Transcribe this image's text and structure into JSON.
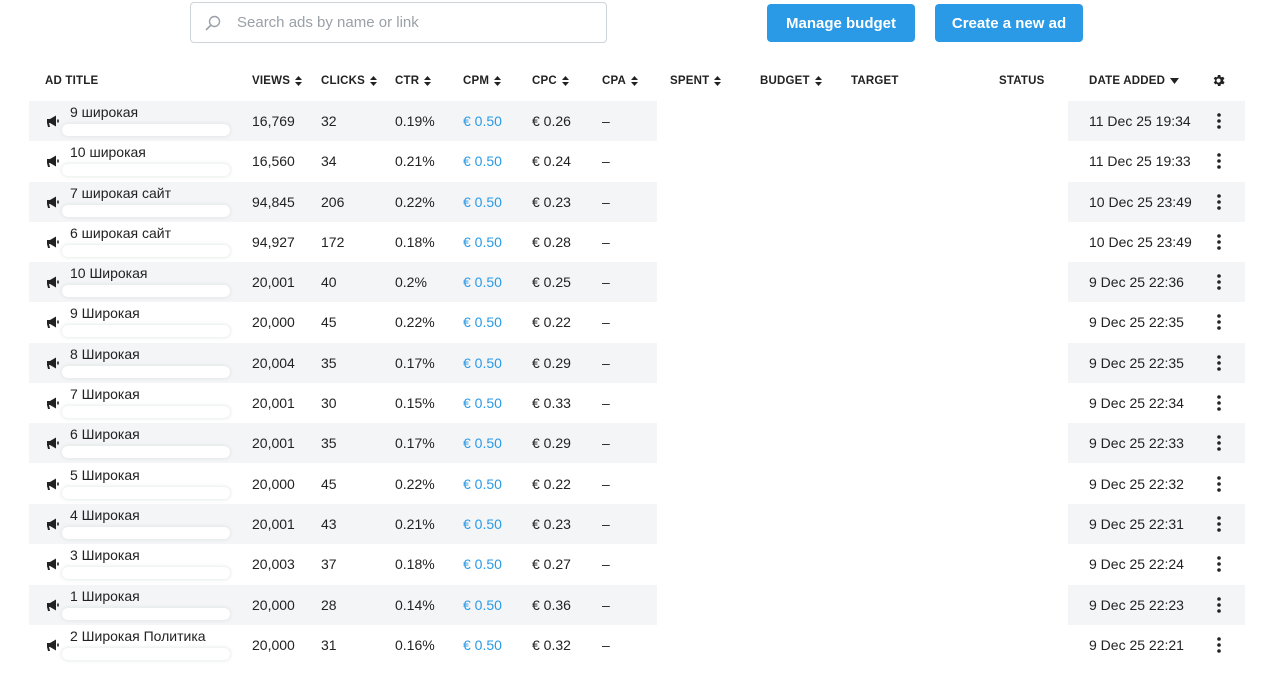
{
  "search": {
    "placeholder": "Search ads by name or link",
    "value": ""
  },
  "toolbar": {
    "manage_budget_label": "Manage budget",
    "create_ad_label": "Create a new ad"
  },
  "colors": {
    "accent": "#2a9ae6",
    "row_alt": "#f4f5f7"
  },
  "table": {
    "columns": {
      "ad_title": "AD TITLE",
      "views": "VIEWS",
      "clicks": "CLICKS",
      "ctr": "CTR",
      "cpm": "CPM",
      "cpc": "CPC",
      "cpa": "CPA",
      "spent": "SPENT",
      "budget": "BUDGET",
      "target": "TARGET",
      "status": "STATUS",
      "date_added": "DATE ADDED"
    },
    "rows": [
      {
        "title": "9 широкая",
        "views": "16,769",
        "clicks": "32",
        "ctr": "0.19%",
        "cpm": "€ 0.50",
        "cpc": "€ 0.26",
        "cpa": "–",
        "date": "11 Dec 25 19:34"
      },
      {
        "title": "10 широкая",
        "views": "16,560",
        "clicks": "34",
        "ctr": "0.21%",
        "cpm": "€ 0.50",
        "cpc": "€ 0.24",
        "cpa": "–",
        "date": "11 Dec 25 19:33"
      },
      {
        "title": "7 широкая сайт",
        "views": "94,845",
        "clicks": "206",
        "ctr": "0.22%",
        "cpm": "€ 0.50",
        "cpc": "€ 0.23",
        "cpa": "–",
        "date": "10 Dec 25 23:49"
      },
      {
        "title": "6 широкая сайт",
        "views": "94,927",
        "clicks": "172",
        "ctr": "0.18%",
        "cpm": "€ 0.50",
        "cpc": "€ 0.28",
        "cpa": "–",
        "date": "10 Dec 25 23:49"
      },
      {
        "title": "10 Широкая",
        "views": "20,001",
        "clicks": "40",
        "ctr": "0.2%",
        "cpm": "€ 0.50",
        "cpc": "€ 0.25",
        "cpa": "–",
        "date": "9 Dec 25 22:36"
      },
      {
        "title": "9 Широкая",
        "views": "20,000",
        "clicks": "45",
        "ctr": "0.22%",
        "cpm": "€ 0.50",
        "cpc": "€ 0.22",
        "cpa": "–",
        "date": "9 Dec 25 22:35"
      },
      {
        "title": "8 Широкая",
        "views": "20,004",
        "clicks": "35",
        "ctr": "0.17%",
        "cpm": "€ 0.50",
        "cpc": "€ 0.29",
        "cpa": "–",
        "date": "9 Dec 25 22:35"
      },
      {
        "title": "7 Широкая",
        "views": "20,001",
        "clicks": "30",
        "ctr": "0.15%",
        "cpm": "€ 0.50",
        "cpc": "€ 0.33",
        "cpa": "–",
        "date": "9 Dec 25 22:34"
      },
      {
        "title": "6 Широкая",
        "views": "20,001",
        "clicks": "35",
        "ctr": "0.17%",
        "cpm": "€ 0.50",
        "cpc": "€ 0.29",
        "cpa": "–",
        "date": "9 Dec 25 22:33"
      },
      {
        "title": "5 Широкая",
        "views": "20,000",
        "clicks": "45",
        "ctr": "0.22%",
        "cpm": "€ 0.50",
        "cpc": "€ 0.22",
        "cpa": "–",
        "date": "9 Dec 25 22:32"
      },
      {
        "title": "4 Широкая",
        "views": "20,001",
        "clicks": "43",
        "ctr": "0.21%",
        "cpm": "€ 0.50",
        "cpc": "€ 0.23",
        "cpa": "–",
        "date": "9 Dec 25 22:31"
      },
      {
        "title": "3 Широкая",
        "views": "20,003",
        "clicks": "37",
        "ctr": "0.18%",
        "cpm": "€ 0.50",
        "cpc": "€ 0.27",
        "cpa": "–",
        "date": "9 Dec 25 22:24"
      },
      {
        "title": "1 Широкая",
        "views": "20,000",
        "clicks": "28",
        "ctr": "0.14%",
        "cpm": "€ 0.50",
        "cpc": "€ 0.36",
        "cpa": "–",
        "date": "9 Dec 25 22:23"
      },
      {
        "title": "2 Широкая Политика",
        "views": "20,000",
        "clicks": "31",
        "ctr": "0.16%",
        "cpm": "€ 0.50",
        "cpc": "€ 0.32",
        "cpa": "–",
        "date": "9 Dec 25 22:21"
      }
    ]
  }
}
